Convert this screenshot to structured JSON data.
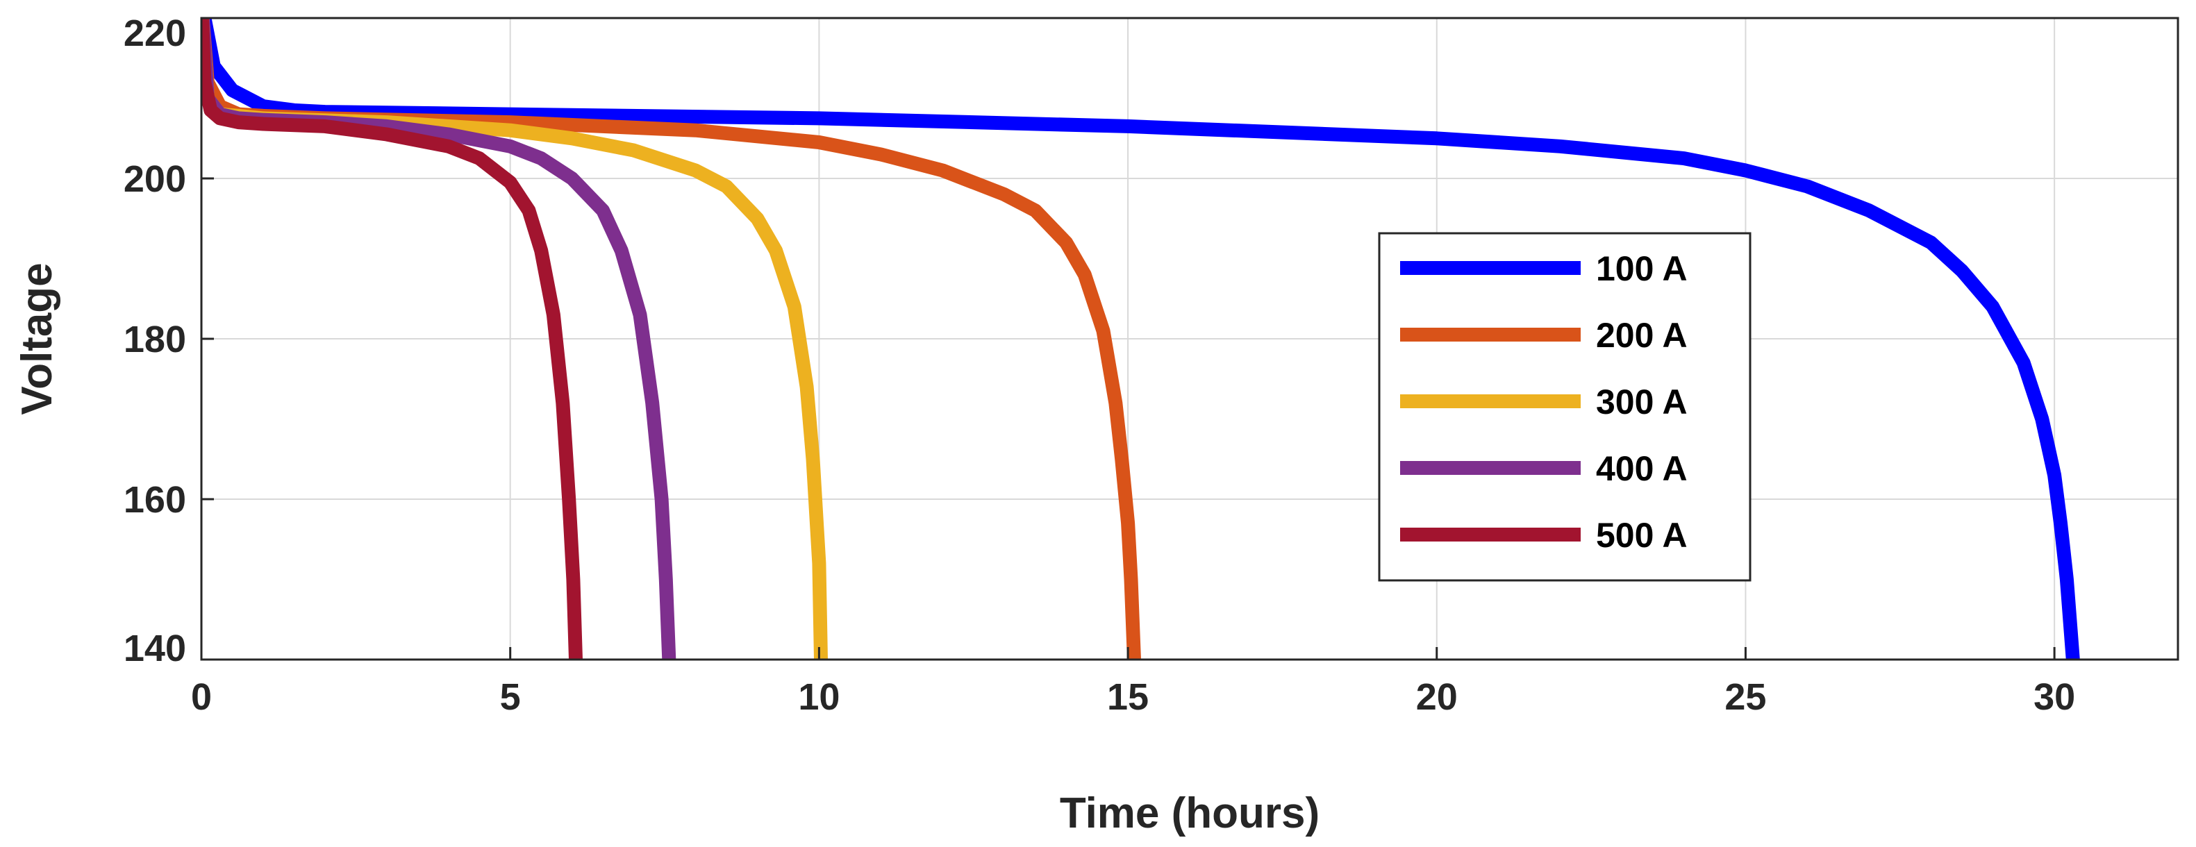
{
  "chart_data": {
    "type": "line",
    "title": "",
    "xlabel": "Time (hours)",
    "ylabel": "Voltage",
    "xlim": [
      0,
      32
    ],
    "ylim": [
      140,
      220
    ],
    "xticks": [
      0,
      5,
      10,
      15,
      20,
      25,
      30
    ],
    "yticks": [
      140,
      160,
      180,
      200,
      220
    ],
    "grid": true,
    "legend_position": "center-right",
    "series": [
      {
        "name": "100 A",
        "color": "#0000ff",
        "x": [
          0,
          0.2,
          0.5,
          1,
          1.5,
          2,
          5,
          10,
          15,
          20,
          22,
          24,
          25,
          26,
          27,
          28,
          28.5,
          29,
          29.5,
          29.8,
          30,
          30.1,
          30.2,
          30.3
        ],
        "y": [
          222,
          214,
          211,
          209,
          208.5,
          208.3,
          208,
          207.5,
          206.5,
          205,
          204,
          202.5,
          201,
          199,
          196,
          192,
          188.5,
          184,
          177,
          170,
          163,
          157,
          150,
          140
        ]
      },
      {
        "name": "200 A",
        "color": "#d95319",
        "x": [
          0,
          0.1,
          0.3,
          0.6,
          1,
          2,
          5,
          8,
          10,
          11,
          12,
          13,
          13.5,
          14,
          14.3,
          14.6,
          14.8,
          14.9,
          15,
          15.05,
          15.1
        ],
        "y": [
          222,
          212,
          209,
          208,
          207.8,
          207.5,
          207,
          206,
          204.5,
          203,
          201,
          198,
          196,
          192,
          188,
          181,
          172,
          165,
          157,
          150,
          140
        ]
      },
      {
        "name": "300 A",
        "color": "#edb120",
        "x": [
          0,
          0.1,
          0.3,
          0.6,
          1,
          3,
          5,
          6,
          7,
          8,
          8.5,
          9,
          9.3,
          9.6,
          9.8,
          9.9,
          10,
          10.03
        ],
        "y": [
          222,
          210,
          208,
          207.8,
          207.5,
          207,
          206,
          205,
          203.5,
          201,
          199,
          195,
          191,
          184,
          174,
          165,
          152,
          140
        ]
      },
      {
        "name": "400 A",
        "color": "#7e2f8e",
        "x": [
          0,
          0.1,
          0.3,
          0.6,
          1,
          2,
          3,
          4,
          5,
          5.5,
          6,
          6.5,
          6.8,
          7.1,
          7.3,
          7.45,
          7.52,
          7.57
        ],
        "y": [
          222,
          210,
          208,
          207.5,
          207.3,
          207,
          206.5,
          205.5,
          204,
          202.5,
          200,
          196,
          191,
          183,
          172,
          160,
          150,
          140
        ]
      },
      {
        "name": "500 A",
        "color": "#a2142f",
        "x": [
          0,
          0.05,
          0.15,
          0.3,
          0.6,
          1,
          2,
          3,
          4,
          4.5,
          5,
          5.3,
          5.5,
          5.7,
          5.85,
          5.95,
          6.02,
          6.06
        ],
        "y": [
          222,
          212,
          208.5,
          207.5,
          207,
          206.8,
          206.5,
          205.5,
          204,
          202.5,
          199.5,
          196,
          191,
          183,
          172,
          160,
          150,
          140
        ]
      }
    ]
  }
}
